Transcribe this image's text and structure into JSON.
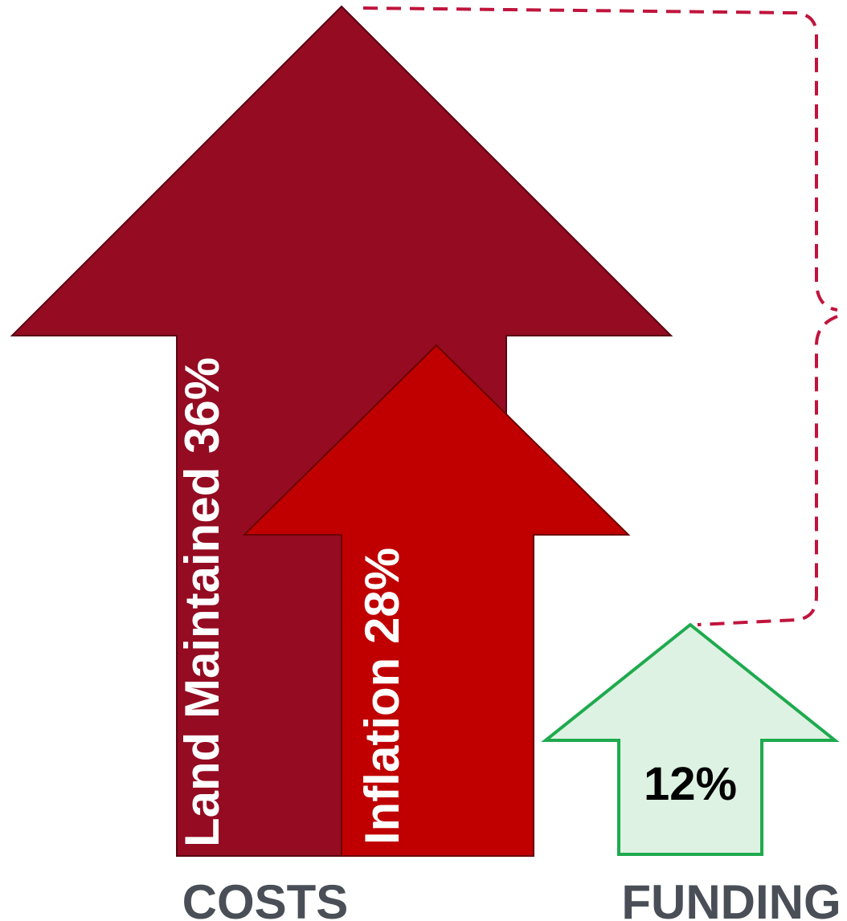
{
  "colors": {
    "land_arrow_fill": "#940B22",
    "land_arrow_stroke": "#5A0613",
    "inflation_arrow_fill": "#C00000",
    "inflation_arrow_stroke": "#6B0000",
    "funding_arrow_fill": "#DDF2E2",
    "funding_arrow_stroke": "#1EAA4E",
    "connector": "#C0143C",
    "category_label": "#4A4F57",
    "light_text": "#FFFFFF",
    "dark_text": "#000000"
  },
  "arrows": {
    "land_maintained": {
      "label": "Land Maintained 36%",
      "percent": 36
    },
    "inflation": {
      "label": "Inflation 28%",
      "percent": 28
    },
    "funding": {
      "label": "12%",
      "percent": 12
    }
  },
  "categories": {
    "costs": "COSTS",
    "funding": "FUNDING"
  }
}
